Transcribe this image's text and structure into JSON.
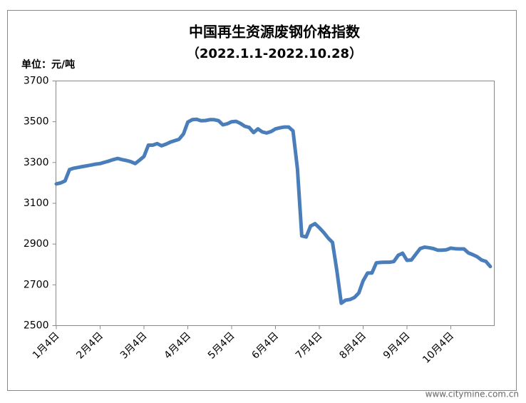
{
  "chart_data": {
    "type": "line",
    "title": "中国再生资源废钢价格指数",
    "subtitle": "（2022.1.1-2022.10.28）",
    "y_axis_label": "单位：元/吨",
    "watermark": "www.citymine.com.cn",
    "color": "#4a7ebb",
    "ylim": [
      2500,
      3700
    ],
    "yticks": [
      2500,
      2700,
      2900,
      3100,
      3300,
      3500,
      3700
    ],
    "grid": false,
    "categories": [
      "1月4日",
      null,
      null,
      null,
      null,
      null,
      null,
      null,
      null,
      null,
      "2月4日",
      null,
      null,
      null,
      null,
      null,
      null,
      null,
      null,
      null,
      "3月4日",
      null,
      null,
      null,
      null,
      null,
      null,
      null,
      null,
      null,
      "4月4日",
      null,
      null,
      null,
      null,
      null,
      null,
      null,
      null,
      null,
      "5月4日",
      null,
      null,
      null,
      null,
      null,
      null,
      null,
      null,
      null,
      "6月4日",
      null,
      null,
      null,
      null,
      null,
      null,
      null,
      null,
      null,
      "7月4日",
      null,
      null,
      null,
      null,
      null,
      null,
      null,
      null,
      null,
      "8月4日",
      null,
      null,
      null,
      null,
      null,
      null,
      null,
      null,
      null,
      "9月4日",
      null,
      null,
      null,
      null,
      null,
      null,
      null,
      null,
      null,
      "10月4日",
      null,
      null,
      null,
      null,
      null,
      null,
      null,
      null,
      null
    ],
    "values": [
      3195,
      3200,
      3210,
      3265,
      3272,
      3276,
      3280,
      3284,
      3288,
      3292,
      3295,
      3301,
      3307,
      3314,
      3320,
      3314,
      3310,
      3304,
      3295,
      3312,
      3330,
      3385,
      3385,
      3393,
      3382,
      3390,
      3400,
      3407,
      3414,
      3440,
      3498,
      3510,
      3512,
      3505,
      3506,
      3510,
      3510,
      3505,
      3485,
      3490,
      3500,
      3502,
      3492,
      3478,
      3472,
      3447,
      3465,
      3450,
      3445,
      3452,
      3465,
      3470,
      3474,
      3474,
      3455,
      3270,
      2940,
      2935,
      2988,
      3000,
      2980,
      2957,
      2930,
      2908,
      2770,
      2610,
      2625,
      2628,
      2638,
      2660,
      2720,
      2758,
      2758,
      2808,
      2810,
      2811,
      2811,
      2814,
      2845,
      2855,
      2820,
      2822,
      2850,
      2878,
      2885,
      2882,
      2878,
      2870,
      2870,
      2872,
      2880,
      2877,
      2876,
      2876,
      2857,
      2848,
      2838,
      2822,
      2815,
      2790
    ]
  }
}
